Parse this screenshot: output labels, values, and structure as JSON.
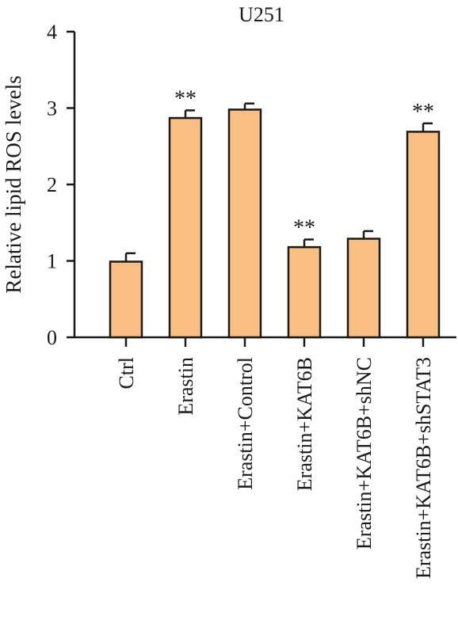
{
  "chart_data": {
    "type": "bar",
    "title": "U251",
    "xlabel": "",
    "ylabel": "Relative lipid ROS levels",
    "ylim": [
      0,
      4
    ],
    "yticks": [
      "0",
      "1",
      "2",
      "3",
      "4"
    ],
    "categories": [
      "Ctrl",
      "Erastin",
      "Erastin+Control",
      "Erastin+KAT6B",
      "Erastin+KAT6B+shNC",
      "Erastin+KAT6B+shSTAT3"
    ],
    "values": [
      0.99,
      2.87,
      2.98,
      1.18,
      1.29,
      2.69
    ],
    "errors": [
      0.11,
      0.1,
      0.08,
      0.1,
      0.1,
      0.11
    ],
    "annotations": [
      "",
      "**",
      "",
      "**",
      "",
      "**"
    ],
    "bar_color": "#F9BE81",
    "grid": false,
    "legend": "none"
  }
}
